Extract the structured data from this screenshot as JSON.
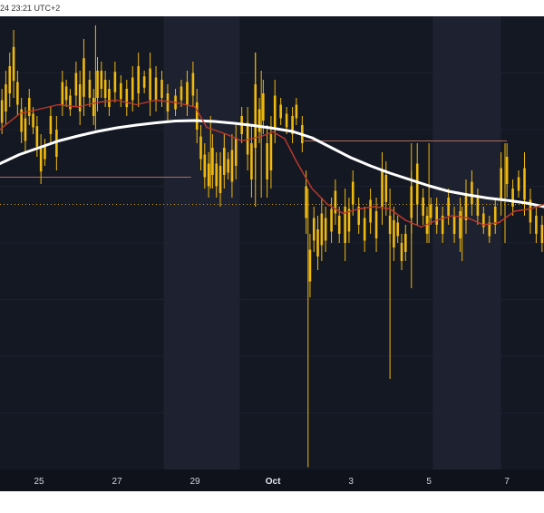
{
  "header": {
    "timestamp": "24 23:21 UTC+2"
  },
  "colors": {
    "background": "#141823",
    "weekend_band": "#1e2230",
    "bar": "#f0b90b",
    "ema_fast": "#c0392b",
    "ema_slow": "#ffffff",
    "level_line": "#b06a5a",
    "dotted_level": "#d4a017",
    "axis_bg": "#0f121a"
  },
  "chart_data": {
    "type": "line",
    "x_ticks": [
      {
        "label": "25",
        "bold": false,
        "day": 25
      },
      {
        "label": "27",
        "bold": false,
        "day": 27
      },
      {
        "label": "29",
        "bold": false,
        "day": 29
      },
      {
        "label": "Oct",
        "bold": true,
        "day": 31
      },
      {
        "label": "3",
        "bold": false,
        "day": 33
      },
      {
        "label": "5",
        "bold": false,
        "day": 35
      },
      {
        "label": "7",
        "bold": false,
        "day": 37
      }
    ],
    "xlim": [
      24.0,
      37.95
    ],
    "ylim": [
      0,
      100
    ],
    "weekend_bands": [
      [
        28.2,
        30.15
      ],
      [
        35.1,
        36.85
      ]
    ],
    "levels": [
      {
        "y": 64.5,
        "x0": 24.0,
        "x1": 28.9,
        "style": "solid"
      },
      {
        "y": 72.5,
        "x0": 31.8,
        "x1": 37.0,
        "style": "solid"
      },
      {
        "y": 58.5,
        "x0": 24.0,
        "x1": 37.95,
        "style": "dotted"
      }
    ],
    "series": [
      {
        "kind": "ema_slow",
        "points": [
          [
            24.0,
            67.5
          ],
          [
            24.5,
            69.5
          ],
          [
            25.0,
            71.0
          ],
          [
            25.5,
            72.5
          ],
          [
            26.0,
            73.6
          ],
          [
            26.5,
            74.6
          ],
          [
            27.0,
            75.4
          ],
          [
            27.5,
            76.0
          ],
          [
            28.0,
            76.5
          ],
          [
            28.5,
            76.9
          ],
          [
            29.0,
            77.0
          ],
          [
            29.5,
            76.8
          ],
          [
            30.0,
            76.4
          ],
          [
            30.5,
            75.9
          ],
          [
            31.0,
            75.3
          ],
          [
            31.5,
            74.6
          ],
          [
            32.0,
            73.2
          ],
          [
            32.5,
            71.0
          ],
          [
            33.0,
            68.8
          ],
          [
            33.5,
            67.0
          ],
          [
            34.0,
            65.4
          ],
          [
            34.5,
            64.0
          ],
          [
            35.0,
            62.6
          ],
          [
            35.5,
            61.4
          ],
          [
            36.0,
            60.6
          ],
          [
            36.5,
            59.9
          ],
          [
            37.0,
            59.4
          ],
          [
            37.5,
            58.8
          ],
          [
            37.95,
            58.0
          ]
        ]
      },
      {
        "kind": "ema_fast",
        "points": [
          [
            24.0,
            75.0
          ],
          [
            24.5,
            78.5
          ],
          [
            25.0,
            79.5
          ],
          [
            25.5,
            80.5
          ],
          [
            26.0,
            80.0
          ],
          [
            26.5,
            81.0
          ],
          [
            27.0,
            81.5
          ],
          [
            27.5,
            80.5
          ],
          [
            28.0,
            81.5
          ],
          [
            28.5,
            81.0
          ],
          [
            29.0,
            80.0
          ],
          [
            29.3,
            75.5
          ],
          [
            29.8,
            74.0
          ],
          [
            30.2,
            72.5
          ],
          [
            30.7,
            73.5
          ],
          [
            31.0,
            74.5
          ],
          [
            31.3,
            73.0
          ],
          [
            31.6,
            68.0
          ],
          [
            32.0,
            62.0
          ],
          [
            32.4,
            58.5
          ],
          [
            32.8,
            56.5
          ],
          [
            33.2,
            57.5
          ],
          [
            33.6,
            58.0
          ],
          [
            34.0,
            57.5
          ],
          [
            34.4,
            55.0
          ],
          [
            34.8,
            53.5
          ],
          [
            35.2,
            55.0
          ],
          [
            35.6,
            56.0
          ],
          [
            36.0,
            55.5
          ],
          [
            36.4,
            54.0
          ],
          [
            36.8,
            54.5
          ],
          [
            37.2,
            57.0
          ],
          [
            37.6,
            57.5
          ],
          [
            37.95,
            58.5
          ]
        ]
      },
      {
        "kind": "bars",
        "points": [
          [
            24.05,
            74,
            84
          ],
          [
            24.15,
            76,
            88
          ],
          [
            24.25,
            80,
            92
          ],
          [
            24.35,
            82,
            97
          ],
          [
            24.45,
            78,
            88
          ],
          [
            24.55,
            72,
            82
          ],
          [
            24.65,
            70,
            80
          ],
          [
            24.75,
            76,
            84
          ],
          [
            24.85,
            74,
            80
          ],
          [
            24.95,
            69,
            78
          ],
          [
            25.05,
            63,
            74
          ],
          [
            25.15,
            67,
            73
          ],
          [
            25.3,
            72,
            80
          ],
          [
            25.45,
            66,
            78
          ],
          [
            25.6,
            78,
            88
          ],
          [
            25.7,
            80,
            86
          ],
          [
            25.8,
            78,
            84
          ],
          [
            25.95,
            80,
            90
          ],
          [
            26.05,
            76,
            88
          ],
          [
            26.15,
            78,
            95
          ],
          [
            26.3,
            80,
            88
          ],
          [
            26.4,
            76,
            84
          ],
          [
            26.5,
            79,
            91
          ],
          [
            26.6,
            82,
            90
          ],
          [
            26.7,
            80,
            88
          ],
          [
            26.8,
            78,
            86
          ],
          [
            26.95,
            81,
            90
          ],
          [
            27.1,
            80,
            87
          ],
          [
            27.25,
            78,
            86
          ],
          [
            27.4,
            79,
            89
          ],
          [
            27.55,
            80,
            92
          ],
          [
            27.7,
            83,
            88
          ],
          [
            27.85,
            78,
            92
          ],
          [
            28.0,
            79,
            89
          ],
          [
            28.15,
            80,
            88
          ],
          [
            28.3,
            77,
            85
          ],
          [
            28.5,
            78,
            84
          ],
          [
            28.65,
            80,
            86
          ],
          [
            28.8,
            78,
            88
          ],
          [
            28.95,
            80,
            90
          ],
          [
            29.05,
            72,
            84
          ],
          [
            29.15,
            66,
            76
          ],
          [
            29.25,
            62,
            72
          ],
          [
            29.35,
            60,
            70
          ],
          [
            29.45,
            62,
            74
          ],
          [
            29.55,
            60,
            70
          ],
          [
            29.65,
            58,
            70
          ],
          [
            29.75,
            62,
            74
          ],
          [
            29.85,
            64,
            70
          ],
          [
            29.95,
            60,
            74
          ],
          [
            30.05,
            64,
            76
          ],
          [
            30.2,
            72,
            80
          ],
          [
            30.35,
            66,
            80
          ],
          [
            30.45,
            60,
            76
          ],
          [
            30.55,
            64,
            92
          ],
          [
            30.65,
            72,
            82
          ],
          [
            30.75,
            74,
            86
          ],
          [
            30.85,
            60,
            76
          ],
          [
            30.95,
            62,
            78
          ],
          [
            31.05,
            72,
            86
          ],
          [
            31.2,
            76,
            82
          ],
          [
            31.35,
            74,
            80
          ],
          [
            31.5,
            72,
            80
          ],
          [
            31.6,
            76,
            82
          ],
          [
            31.75,
            70,
            78
          ],
          [
            31.85,
            52,
            66
          ],
          [
            31.95,
            38,
            52
          ],
          [
            32.05,
            48,
            58
          ],
          [
            32.15,
            44,
            56
          ],
          [
            32.25,
            46,
            60
          ],
          [
            32.35,
            48,
            58
          ],
          [
            32.5,
            50,
            60
          ],
          [
            32.6,
            54,
            64
          ],
          [
            32.7,
            50,
            58
          ],
          [
            32.85,
            46,
            62
          ],
          [
            32.95,
            50,
            60
          ],
          [
            33.05,
            56,
            66
          ],
          [
            33.2,
            52,
            60
          ],
          [
            33.35,
            48,
            58
          ],
          [
            33.5,
            52,
            62
          ],
          [
            33.65,
            48,
            60
          ],
          [
            33.8,
            54,
            70
          ],
          [
            33.9,
            56,
            68
          ],
          [
            34.0,
            50,
            58
          ],
          [
            34.1,
            46,
            58
          ],
          [
            34.2,
            50,
            56
          ],
          [
            34.3,
            44,
            52
          ],
          [
            34.4,
            46,
            54
          ],
          [
            34.55,
            52,
            66
          ],
          [
            34.7,
            54,
            72
          ],
          [
            34.85,
            54,
            62
          ],
          [
            34.95,
            50,
            58
          ],
          [
            35.05,
            54,
            60
          ],
          [
            35.2,
            52,
            60
          ],
          [
            35.35,
            50,
            58
          ],
          [
            35.5,
            54,
            62
          ],
          [
            35.65,
            50,
            58
          ],
          [
            35.8,
            48,
            60
          ],
          [
            35.95,
            52,
            64
          ],
          [
            36.1,
            56,
            66
          ],
          [
            36.25,
            54,
            62
          ],
          [
            36.4,
            52,
            58
          ],
          [
            36.55,
            50,
            56
          ],
          [
            36.7,
            52,
            60
          ],
          [
            36.85,
            56,
            70
          ],
          [
            37.0,
            60,
            72
          ],
          [
            37.15,
            56,
            64
          ],
          [
            37.3,
            60,
            66
          ],
          [
            37.45,
            56,
            70
          ],
          [
            37.6,
            52,
            62
          ],
          [
            37.75,
            50,
            58
          ],
          [
            37.9,
            48,
            56
          ]
        ]
      }
    ]
  }
}
